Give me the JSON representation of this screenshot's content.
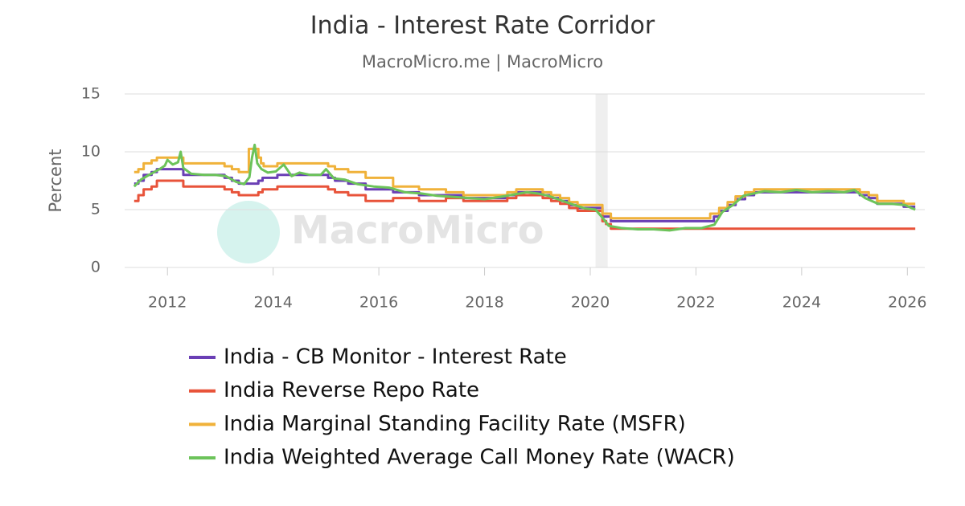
{
  "chart_data": {
    "type": "line",
    "title": "India - Interest Rate Corridor",
    "subtitle": "MacroMicro.me | MacroMicro",
    "watermark": "MacroMicro",
    "y_label": "Percent",
    "xlim": [
      2011.19,
      2026.33
    ],
    "xticks": [
      2012,
      2014,
      2016,
      2018,
      2020,
      2022,
      2024,
      2026
    ],
    "ylim": [
      0,
      15
    ],
    "yticks": [
      0,
      5,
      10,
      15
    ],
    "grid": true,
    "shaded_ranges": [
      [
        2020.1,
        2020.33
      ]
    ],
    "series": [
      {
        "name": "India - CB Monitor - Interest Rate",
        "color": "#6a3fb5",
        "shape": "step",
        "x": [
          2011.37,
          2011.45,
          2011.55,
          2011.7,
          2011.8,
          2012.3,
          2013.08,
          2013.22,
          2013.35,
          2013.72,
          2013.8,
          2014.08,
          2015.04,
          2015.17,
          2015.42,
          2015.75,
          2016.27,
          2016.76,
          2017.6,
          2018.43,
          2018.6,
          2019.1,
          2019.26,
          2019.43,
          2019.6,
          2019.76,
          2020.23,
          2020.39,
          2022.34,
          2022.44,
          2022.6,
          2022.75,
          2022.93,
          2023.1,
          2025.1,
          2025.27,
          2025.43,
          2025.93,
          2026.15
        ],
        "values": [
          7.25,
          7.5,
          8.0,
          8.25,
          8.5,
          8.0,
          7.75,
          7.5,
          7.25,
          7.5,
          7.75,
          8.0,
          7.75,
          7.5,
          7.25,
          6.75,
          6.5,
          6.25,
          6.0,
          6.25,
          6.5,
          6.25,
          6.0,
          5.75,
          5.4,
          5.15,
          4.4,
          4.0,
          4.4,
          4.9,
          5.4,
          5.9,
          6.25,
          6.5,
          6.25,
          6.0,
          5.5,
          5.25,
          5.25
        ]
      },
      {
        "name": "India Reverse Repo Rate",
        "color": "#e8533a",
        "shape": "step",
        "x": [
          2011.37,
          2011.45,
          2011.55,
          2011.7,
          2011.8,
          2012.3,
          2013.08,
          2013.22,
          2013.35,
          2013.72,
          2013.8,
          2014.08,
          2015.04,
          2015.17,
          2015.42,
          2015.75,
          2016.27,
          2016.76,
          2017.27,
          2017.6,
          2018.43,
          2018.6,
          2019.1,
          2019.26,
          2019.43,
          2019.6,
          2019.76,
          2020.23,
          2020.3,
          2020.39,
          2026.15
        ],
        "values": [
          5.75,
          6.25,
          6.75,
          7.0,
          7.5,
          7.0,
          6.75,
          6.5,
          6.25,
          6.5,
          6.75,
          7.0,
          6.75,
          6.5,
          6.25,
          5.75,
          6.0,
          5.75,
          6.0,
          5.75,
          6.0,
          6.25,
          6.0,
          5.75,
          5.5,
          5.15,
          4.9,
          4.0,
          3.75,
          3.35,
          3.35
        ]
      },
      {
        "name": "India Marginal Standing Facility Rate (MSFR)",
        "color": "#f0b23a",
        "shape": "step",
        "x": [
          2011.37,
          2011.45,
          2011.55,
          2011.7,
          2011.8,
          2012.3,
          2013.08,
          2013.22,
          2013.35,
          2013.54,
          2013.72,
          2013.77,
          2013.82,
          2014.08,
          2015.04,
          2015.17,
          2015.42,
          2015.75,
          2016.27,
          2016.76,
          2017.27,
          2017.6,
          2018.43,
          2018.6,
          2019.1,
          2019.26,
          2019.43,
          2019.6,
          2019.76,
          2020.23,
          2020.39,
          2022.27,
          2022.44,
          2022.6,
          2022.75,
          2022.93,
          2023.1,
          2025.1,
          2025.27,
          2025.43,
          2025.93,
          2026.15
        ],
        "values": [
          8.25,
          8.5,
          9.0,
          9.25,
          9.5,
          9.0,
          8.75,
          8.5,
          8.25,
          10.25,
          9.5,
          9.0,
          8.75,
          9.0,
          8.75,
          8.5,
          8.25,
          7.75,
          7.0,
          6.75,
          6.5,
          6.25,
          6.5,
          6.75,
          6.5,
          6.25,
          6.0,
          5.65,
          5.4,
          4.65,
          4.25,
          4.65,
          5.15,
          5.65,
          6.15,
          6.5,
          6.75,
          6.5,
          6.25,
          5.75,
          5.5,
          5.5
        ]
      },
      {
        "name": "India Weighted Average Call Money Rate (WACR)",
        "color": "#6cc35a",
        "shape": "linear",
        "x": [
          2011.37,
          2011.5,
          2011.65,
          2011.85,
          2011.95,
          2012.0,
          2012.1,
          2012.2,
          2012.25,
          2012.3,
          2012.45,
          2012.7,
          2012.9,
          2013.1,
          2013.3,
          2013.45,
          2013.55,
          2013.6,
          2013.65,
          2013.7,
          2013.78,
          2013.9,
          2014.05,
          2014.2,
          2014.35,
          2014.5,
          2014.7,
          2014.9,
          2015.0,
          2015.15,
          2015.35,
          2015.6,
          2015.9,
          2016.2,
          2016.5,
          2016.8,
          2017.1,
          2017.4,
          2017.7,
          2018.0,
          2018.3,
          2018.55,
          2018.8,
          2019.0,
          2019.2,
          2019.45,
          2019.7,
          2019.9,
          2020.1,
          2020.25,
          2020.35,
          2020.6,
          2020.9,
          2021.2,
          2021.5,
          2021.8,
          2022.1,
          2022.35,
          2022.5,
          2022.7,
          2022.9,
          2023.1,
          2023.3,
          2023.6,
          2023.9,
          2024.2,
          2024.5,
          2024.8,
          2025.0,
          2025.2,
          2025.45,
          2025.7,
          2025.95,
          2026.15
        ],
        "values": [
          7.0,
          7.6,
          8.0,
          8.5,
          8.8,
          9.3,
          8.9,
          9.1,
          10.0,
          8.6,
          8.1,
          8.0,
          8.0,
          7.9,
          7.4,
          7.2,
          7.8,
          9.5,
          10.6,
          9.0,
          8.5,
          8.2,
          8.3,
          8.9,
          7.9,
          8.2,
          8.0,
          8.0,
          8.5,
          7.7,
          7.6,
          7.2,
          7.0,
          6.9,
          6.5,
          6.4,
          6.2,
          6.1,
          6.0,
          5.9,
          6.1,
          6.3,
          6.5,
          6.4,
          6.2,
          5.8,
          5.4,
          5.1,
          5.0,
          4.2,
          3.6,
          3.4,
          3.3,
          3.3,
          3.2,
          3.4,
          3.4,
          3.7,
          4.8,
          5.4,
          6.2,
          6.4,
          6.6,
          6.5,
          6.7,
          6.5,
          6.6,
          6.5,
          6.7,
          6.0,
          5.5,
          5.5,
          5.4,
          5.0
        ]
      }
    ]
  }
}
